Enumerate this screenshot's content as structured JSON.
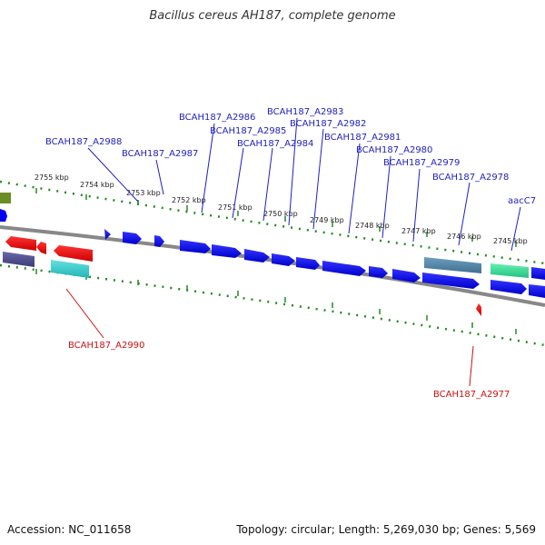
{
  "title": "Bacillus cereus AH187, complete genome",
  "footer": {
    "accession": "Accession: NC_011658",
    "topology": "Topology: circular; Length: 5,269,030 bp; Genes: 5,569"
  },
  "colors": {
    "forward_gene": "#0000ee",
    "reverse_gene": "#ee0000",
    "label_forward": "#1f1fbf",
    "label_reverse": "#cc1111",
    "tick": "#228b22",
    "backbone": "#888888"
  },
  "kbp_labels": [
    "2755 kbp",
    "2754 kbp",
    "2753 kbp",
    "2752 kbp",
    "2751 kbp",
    "2750 kbp",
    "2749 kbp",
    "2748 kbp",
    "2747 kbp",
    "2746 kbp",
    "2745 kbp"
  ],
  "top_labels": [
    "BCAH187_A2988",
    "BCAH187_A2987",
    "BCAH187_A2986",
    "BCAH187_A2985",
    "BCAH187_A2984",
    "BCAH187_A2983",
    "BCAH187_A2982",
    "BCAH187_A2981",
    "BCAH187_A2980",
    "BCAH187_A2979",
    "BCAH187_A2978",
    "aacC7"
  ],
  "bottom_labels": [
    "BCAH187_A2990",
    "BCAH187_A2977"
  ]
}
